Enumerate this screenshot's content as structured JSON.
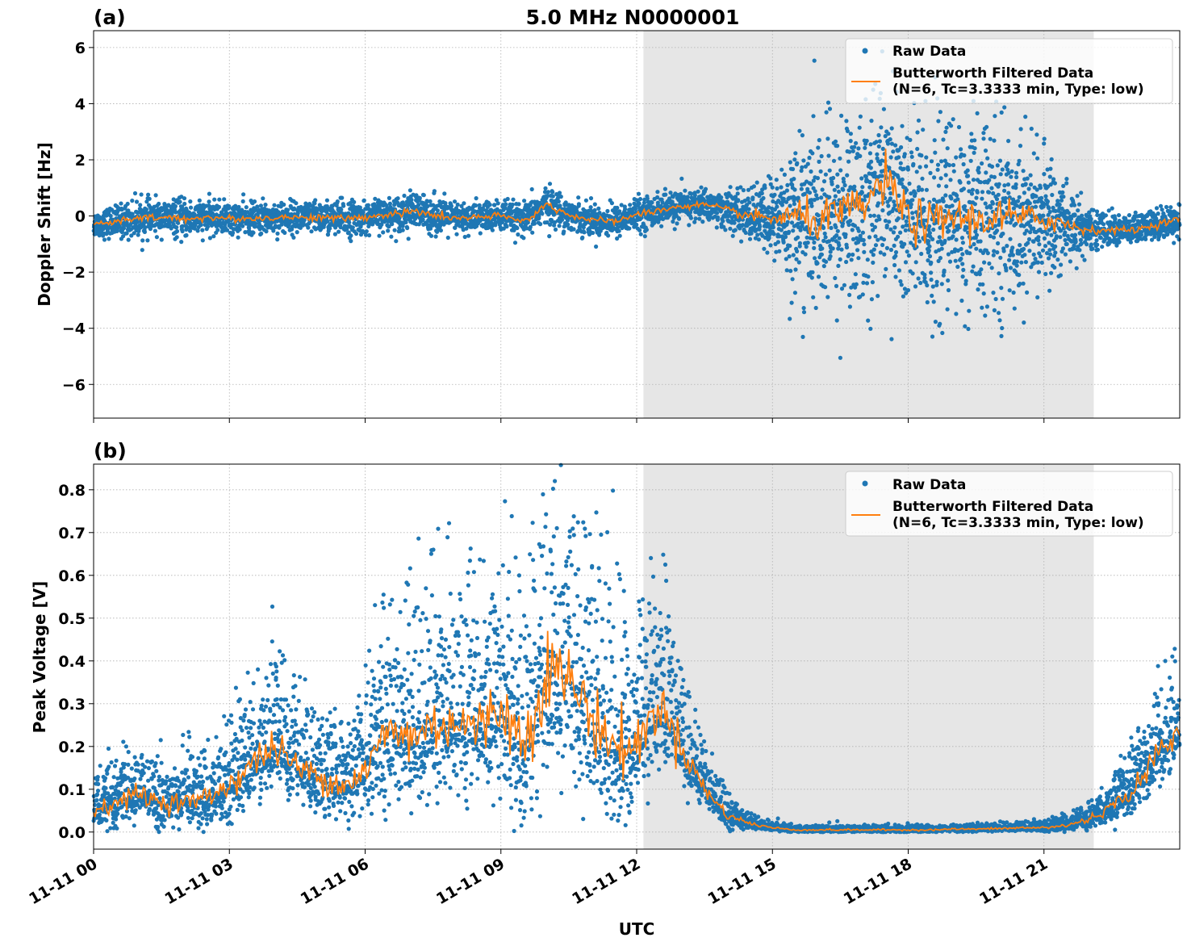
{
  "title": "5.0 MHz N0000001",
  "xlabel": "UTC",
  "x_tick_labels": [
    "11-11 00",
    "11-11 03",
    "11-11 06",
    "11-11 09",
    "11-11 12",
    "11-11 15",
    "11-11 18",
    "11-11 21"
  ],
  "colors": {
    "raw": "#1f77b4",
    "filtered": "#ff7f0e",
    "shade": "#e6e6e6",
    "grid": "#b0b0b0"
  },
  "legend": {
    "raw_label": "Raw Data",
    "filtered_label_line1": "Butterworth Filtered Data",
    "filtered_label_line2": "(N=6, Tc=3.3333 min, Type: low)",
    "placement": "upper-right"
  },
  "chart_data": [
    {
      "type": "scatter",
      "panel_label": "(a)",
      "ylabel": "Doppler Shift [Hz]",
      "xlim_hours": [
        0,
        24
      ],
      "ylim": [
        -7.2,
        6.6
      ],
      "y_ticks": [
        -6,
        -4,
        -2,
        0,
        2,
        4,
        6
      ],
      "y_tick_labels": [
        "−6",
        "−4",
        "−2",
        "0",
        "2",
        "4",
        "6"
      ],
      "grid": true,
      "shaded_interval_hours": [
        12.15,
        22.1
      ],
      "filtered_x_hours": [
        0,
        0.5,
        1,
        1.5,
        2,
        2.5,
        3,
        3.5,
        4,
        4.5,
        5,
        5.5,
        6,
        6.5,
        7,
        7.5,
        8,
        8.5,
        9,
        9.5,
        10,
        10.5,
        11,
        11.5,
        12,
        12.5,
        13,
        13.5,
        14,
        14.5,
        15,
        15.5,
        16,
        16.5,
        17,
        17.5,
        18,
        18.5,
        19,
        19.5,
        20,
        20.5,
        21,
        21.5,
        22,
        22.5,
        23,
        23.5,
        24
      ],
      "filtered_y": [
        -0.3,
        -0.2,
        -0.1,
        -0.05,
        -0.1,
        -0.05,
        -0.1,
        -0.1,
        -0.05,
        -0.05,
        -0.05,
        -0.1,
        -0.05,
        0.05,
        0.15,
        0.05,
        -0.1,
        -0.05,
        0.0,
        -0.2,
        0.4,
        0.05,
        -0.15,
        -0.2,
        0.05,
        0.2,
        0.35,
        0.4,
        0.2,
        0.0,
        -0.1,
        0.0,
        -0.2,
        0.1,
        0.3,
        1.3,
        -0.1,
        -0.3,
        0.0,
        -0.2,
        0.0,
        -0.1,
        -0.1,
        -0.3,
        -0.5,
        -0.5,
        -0.5,
        -0.3,
        -0.1
      ],
      "raw_spread": [
        0.4,
        0.5,
        0.6,
        0.5,
        0.6,
        0.5,
        0.5,
        0.5,
        0.5,
        0.5,
        0.5,
        0.6,
        0.5,
        0.5,
        0.6,
        0.6,
        0.5,
        0.5,
        0.5,
        0.5,
        0.6,
        0.5,
        0.5,
        0.5,
        0.5,
        0.5,
        0.5,
        0.5,
        0.6,
        0.8,
        1.3,
        2.4,
        2.8,
        3.0,
        3.2,
        3.5,
        3.4,
        3.2,
        3.0,
        3.0,
        2.9,
        2.5,
        1.9,
        1.5,
        0.6,
        0.5,
        0.5,
        0.5,
        0.5
      ]
    },
    {
      "type": "scatter",
      "panel_label": "(b)",
      "ylabel": "Peak Voltage [V]",
      "xlim_hours": [
        0,
        24
      ],
      "ylim": [
        -0.04,
        0.86
      ],
      "y_ticks": [
        0.0,
        0.1,
        0.2,
        0.3,
        0.4,
        0.5,
        0.6,
        0.7,
        0.8
      ],
      "y_tick_labels": [
        "0.0",
        "0.1",
        "0.2",
        "0.3",
        "0.4",
        "0.5",
        "0.6",
        "0.7",
        "0.8"
      ],
      "grid": true,
      "shaded_interval_hours": [
        12.15,
        22.1
      ],
      "filtered_x_hours": [
        0,
        0.5,
        1,
        1.5,
        2,
        2.5,
        3,
        3.5,
        4,
        4.5,
        5,
        5.5,
        6,
        6.5,
        7,
        7.5,
        8,
        8.5,
        9,
        9.5,
        10,
        10.5,
        11,
        11.5,
        12,
        12.5,
        13,
        13.5,
        14,
        14.5,
        15,
        15.5,
        16,
        16.5,
        17,
        17.5,
        18,
        18.5,
        19,
        19.5,
        20,
        20.5,
        21,
        21.5,
        22,
        22.5,
        23,
        23.5,
        24
      ],
      "filtered_y": [
        0.05,
        0.07,
        0.09,
        0.07,
        0.07,
        0.08,
        0.11,
        0.16,
        0.2,
        0.15,
        0.13,
        0.11,
        0.14,
        0.24,
        0.22,
        0.25,
        0.26,
        0.24,
        0.3,
        0.2,
        0.38,
        0.36,
        0.27,
        0.2,
        0.2,
        0.3,
        0.2,
        0.1,
        0.04,
        0.02,
        0.01,
        0.005,
        0.005,
        0.005,
        0.005,
        0.005,
        0.005,
        0.005,
        0.007,
        0.007,
        0.008,
        0.01,
        0.01,
        0.015,
        0.03,
        0.06,
        0.1,
        0.18,
        0.23
      ],
      "raw_spread": [
        0.04,
        0.06,
        0.07,
        0.06,
        0.06,
        0.07,
        0.09,
        0.11,
        0.12,
        0.1,
        0.1,
        0.09,
        0.12,
        0.17,
        0.17,
        0.18,
        0.19,
        0.19,
        0.22,
        0.22,
        0.26,
        0.25,
        0.22,
        0.22,
        0.18,
        0.16,
        0.12,
        0.06,
        0.03,
        0.015,
        0.008,
        0.006,
        0.006,
        0.006,
        0.006,
        0.006,
        0.006,
        0.006,
        0.006,
        0.006,
        0.007,
        0.008,
        0.01,
        0.015,
        0.025,
        0.04,
        0.06,
        0.09,
        0.11
      ]
    }
  ]
}
